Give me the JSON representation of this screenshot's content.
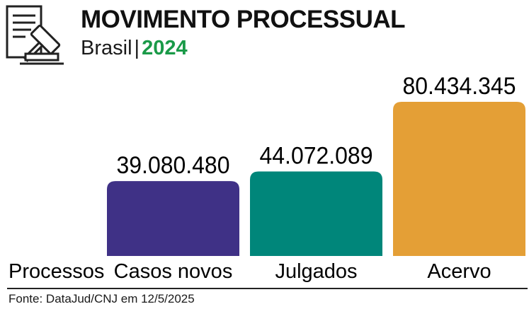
{
  "header": {
    "title": "MOVIMENTO PROCESSUAL",
    "region": "Brasil",
    "separator": "|",
    "year": "2024",
    "icon": "document-gavel-icon"
  },
  "chart_data": {
    "type": "bar",
    "title": "MOVIMENTO PROCESSUAL",
    "subtitle": "Brasil | 2024",
    "xlabel": "Processos",
    "ylabel": "",
    "categories": [
      "Casos novos",
      "Julgados",
      "Acervo"
    ],
    "values": [
      39080480,
      44072089,
      80434345
    ],
    "value_labels": [
      "39.080.480",
      "44.072.089",
      "80.434.345"
    ],
    "colors": [
      "#3f3186",
      "#00867a",
      "#e49f36"
    ],
    "ylim": [
      0,
      80434345
    ],
    "grid": false,
    "legend": "none"
  },
  "footer": {
    "source": "Fonte: DataJud/CNJ em 12/5/2025"
  }
}
